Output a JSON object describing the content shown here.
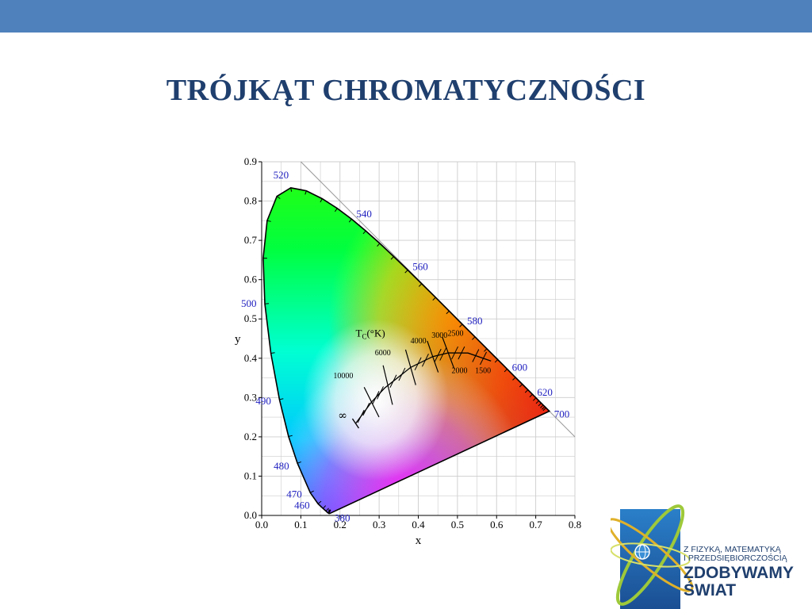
{
  "slide": {
    "title": "TRÓJKĄT CHROMATYCZNOŚCI"
  },
  "colors": {
    "top_bar": "#4f81bd",
    "title": "#1f3f6e",
    "wavelength_label": "#2020c0",
    "grid": "#cccccc"
  },
  "chart_data": {
    "type": "scatter",
    "title": "",
    "xlabel": "x",
    "ylabel": "y",
    "xlim": [
      0,
      0.8
    ],
    "ylim": [
      0,
      0.9
    ],
    "grid": true,
    "x_ticks": [
      "0.0",
      "0.1",
      "0.2",
      "0.3",
      "0.4",
      "0.5",
      "0.6",
      "0.7",
      "0.8"
    ],
    "y_ticks": [
      "0.0",
      "0.1",
      "0.2",
      "0.3",
      "0.4",
      "0.5",
      "0.6",
      "0.7",
      "0.8",
      "0.9"
    ],
    "spectral_locus": [
      [
        0.1741,
        0.005
      ],
      [
        0.1738,
        0.005
      ],
      [
        0.1733,
        0.0048
      ],
      [
        0.1726,
        0.0048
      ],
      [
        0.1714,
        0.0051
      ],
      [
        0.1689,
        0.0069
      ],
      [
        0.1644,
        0.0109
      ],
      [
        0.1566,
        0.0177
      ],
      [
        0.144,
        0.0297
      ],
      [
        0.1241,
        0.0578
      ],
      [
        0.0913,
        0.1327
      ],
      [
        0.0687,
        0.2007
      ],
      [
        0.0454,
        0.295
      ],
      [
        0.0235,
        0.4127
      ],
      [
        0.0082,
        0.5384
      ],
      [
        0.0039,
        0.6548
      ],
      [
        0.0139,
        0.7502
      ],
      [
        0.0389,
        0.812
      ],
      [
        0.0743,
        0.8338
      ],
      [
        0.1142,
        0.8262
      ],
      [
        0.1547,
        0.8059
      ],
      [
        0.1929,
        0.7816
      ],
      [
        0.2296,
        0.7543
      ],
      [
        0.2658,
        0.7243
      ],
      [
        0.3016,
        0.6923
      ],
      [
        0.3373,
        0.6589
      ],
      [
        0.3731,
        0.6245
      ],
      [
        0.4087,
        0.5896
      ],
      [
        0.4441,
        0.5547
      ],
      [
        0.4788,
        0.5202
      ],
      [
        0.5125,
        0.4866
      ],
      [
        0.5448,
        0.4544
      ],
      [
        0.5752,
        0.4242
      ],
      [
        0.6029,
        0.3965
      ],
      [
        0.627,
        0.3725
      ],
      [
        0.6482,
        0.3514
      ],
      [
        0.6658,
        0.334
      ],
      [
        0.6801,
        0.3197
      ],
      [
        0.6915,
        0.3083
      ],
      [
        0.7006,
        0.2993
      ],
      [
        0.7079,
        0.292
      ],
      [
        0.714,
        0.2859
      ],
      [
        0.719,
        0.2809
      ],
      [
        0.723,
        0.277
      ],
      [
        0.726,
        0.274
      ],
      [
        0.7347,
        0.2653
      ]
    ],
    "wavelength_labels": [
      {
        "text": "520",
        "x": 0.0743,
        "y": 0.8338
      },
      {
        "text": "540",
        "x": 0.2296,
        "y": 0.7543
      },
      {
        "text": "560",
        "x": 0.3731,
        "y": 0.6245
      },
      {
        "text": "580",
        "x": 0.5125,
        "y": 0.4866
      },
      {
        "text": "600",
        "x": 0.627,
        "y": 0.3725
      },
      {
        "text": "620",
        "x": 0.6915,
        "y": 0.3083
      },
      {
        "text": "700",
        "x": 0.7347,
        "y": 0.2653
      },
      {
        "text": "500",
        "x": 0.0082,
        "y": 0.5384
      },
      {
        "text": "490",
        "x": 0.0454,
        "y": 0.295
      },
      {
        "text": "480",
        "x": 0.0913,
        "y": 0.1327
      },
      {
        "text": "470",
        "x": 0.1241,
        "y": 0.0578
      },
      {
        "text": "460",
        "x": 0.144,
        "y": 0.0297
      },
      {
        "text": "380",
        "x": 0.1741,
        "y": 0.005
      }
    ],
    "planckian_locus": [
      [
        0.2399,
        0.2341
      ],
      [
        0.2806,
        0.2883
      ],
      [
        0.3138,
        0.3238
      ],
      [
        0.3805,
        0.3768
      ],
      [
        0.4369,
        0.4041
      ],
      [
        0.4765,
        0.4137
      ],
      [
        0.5269,
        0.4133
      ],
      [
        0.5857,
        0.3931
      ]
    ],
    "isotherms": [
      {
        "label": "10000",
        "x": 0.2807,
        "y": 0.2883,
        "dx": -0.019,
        "dy": 0.038,
        "label_x": 0.183,
        "label_y": 0.349
      },
      {
        "label": "6000",
        "x": 0.3221,
        "y": 0.3318,
        "dx": -0.012,
        "dy": 0.05,
        "label_x": 0.289,
        "label_y": 0.408
      },
      {
        "label": "4000",
        "x": 0.3805,
        "y": 0.3768,
        "dx": -0.013,
        "dy": 0.045,
        "label_x": 0.38,
        "label_y": 0.438
      },
      {
        "label": "3000",
        "x": 0.4369,
        "y": 0.4041,
        "dx": -0.014,
        "dy": 0.04,
        "label_x": 0.434,
        "label_y": 0.452
      },
      {
        "label": "2500",
        "x": 0.4765,
        "y": 0.4137,
        "dx": -0.015,
        "dy": 0.04,
        "label_x": 0.475,
        "label_y": 0.457
      },
      {
        "label": "2000",
        "x": 0.5269,
        "y": 0.4133,
        "dx": 0.0,
        "dy": 0.0,
        "label_x": 0.485,
        "label_y": 0.362
      },
      {
        "label": "1500",
        "x": 0.5857,
        "y": 0.3931,
        "dx": 0.0,
        "dy": 0.0,
        "label_x": 0.545,
        "label_y": 0.362
      }
    ],
    "infinity_label": {
      "text": "∞",
      "x": 0.195,
      "y": 0.245
    },
    "tc_label": {
      "text": "T",
      "sub": "C",
      "suffix": "(°K)",
      "x": 0.24,
      "y": 0.455
    }
  },
  "logo": {
    "line1": "Z FIZYKĄ, MATEMATYKĄ",
    "line2": "I PRZEDSIĘBIORCZOŚCIĄ",
    "line3": "ZDOBYWAMY",
    "line4": "ŚWIAT"
  }
}
